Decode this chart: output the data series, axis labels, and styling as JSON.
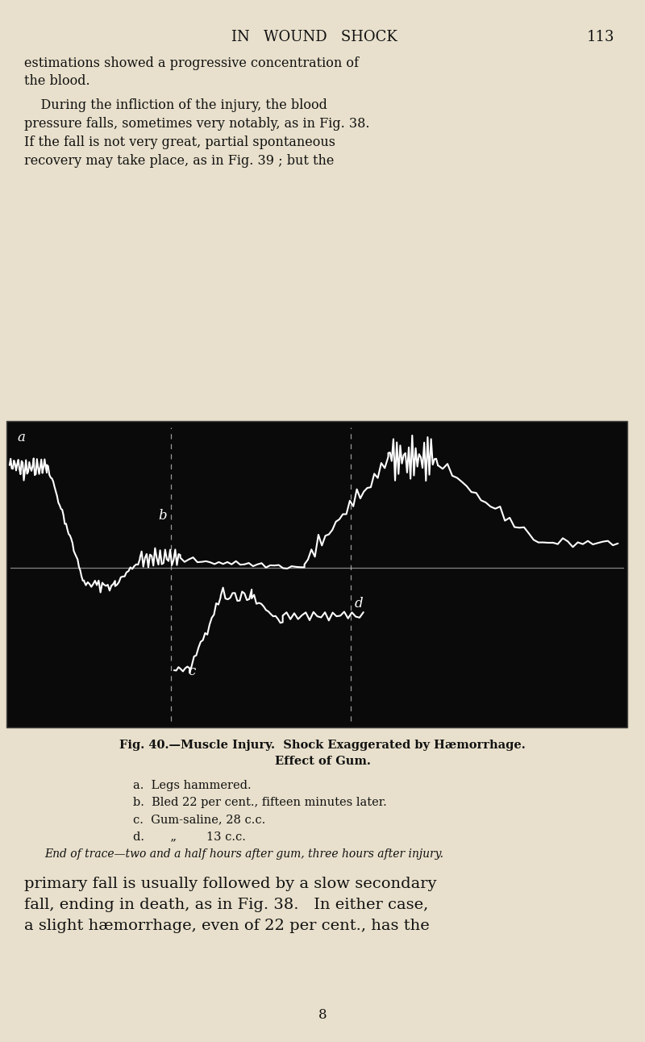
{
  "page_bg": "#e8e0cc",
  "header_text": "IN   WOUND   SHOCK",
  "header_page": "113",
  "para1_line1": "estimations showed a progressive concentration of",
  "para1_line2": "the blood.",
  "para2_lines": [
    "    During the infliction of the injury, the blood",
    "pressure falls, sometimes very notably, as in Fig. 38.",
    "If the fall is not very great, partial spontaneous",
    "recovery may take place, as in Fig. 39 ; but the"
  ],
  "fig_caption_line1": "Fig. 40.—Muscle Injury.  Shock Exaggerated by Hæmorrhage.",
  "fig_caption_line2": "Effect of Gum.",
  "legend_a": "a.  Legs hammered.",
  "legend_b": "b.  Bled 22 per cent., fifteen minutes later.",
  "legend_c": "c.  Gum-saline, 28 c.c.",
  "legend_d": "d.       „        13 c.c.",
  "end_note": "End of trace—two and a half hours after gum, three hours after injury.",
  "para3_lines": [
    "primary fall is usually followed by a slow secondary",
    "fall, ending in death, as in Fig. 38.   In either case,",
    "a slight hæmorrhage, even of 22 per cent., has the"
  ],
  "page_num_bottom": "8",
  "chart_bg": "#0a0a0a",
  "trace_color": "#ffffff",
  "dashed_color": "#cccccc",
  "label_color": "#ffffff",
  "horiz_line_color": "#888888"
}
